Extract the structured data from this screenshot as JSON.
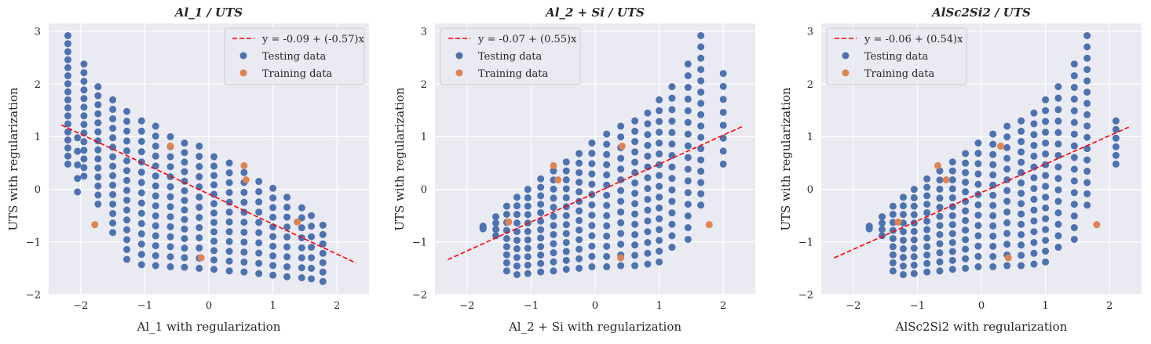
{
  "colors": {
    "background": "#eaeaf2",
    "grid": "#ffffff",
    "testing": "#4c72b0",
    "training": "#dd8452",
    "fit_line": "#ff0000",
    "text": "#262626",
    "legend_bg": "#eaeaf2",
    "legend_border": "#cccccc"
  },
  "chart_data": [
    {
      "type": "scatter",
      "title": "Al_1 / UTS",
      "xlabel": "Al_1 with regularization",
      "ylabel": "UTS with regularization",
      "xlim": [
        -2.5,
        2.5
      ],
      "ylim": [
        -2.0,
        3.15
      ],
      "xticks": [
        -2,
        -1,
        0,
        1,
        2
      ],
      "yticks": [
        -2,
        -1,
        0,
        1,
        2,
        3
      ],
      "xtick_labels": [
        "−2",
        "−1",
        "0",
        "1",
        "2"
      ],
      "ytick_labels": [
        "−2",
        "−1",
        "0",
        "1",
        "2",
        "3"
      ],
      "grid": true,
      "legend_position": "top-right",
      "legend": {
        "line_label": "y = -0.09 + (-0.57)x",
        "testing_label": "Testing data",
        "training_label": "Training data"
      },
      "fit": {
        "intercept": -0.09,
        "slope": -0.57,
        "x_range": [
          -2.3,
          2.3
        ]
      },
      "testing": {
        "columns": [
          {
            "x": -2.2,
            "y_top": 2.92,
            "y_bottom": 0.48,
            "n": 17
          },
          {
            "x": -2.05,
            "y_top": 0.98,
            "y_bottom": -0.05,
            "n": 5
          },
          {
            "x": -1.95,
            "y_top": 2.38,
            "y_bottom": 0.25,
            "n": 14
          },
          {
            "x": -1.73,
            "y_top": 1.95,
            "y_bottom": -0.28,
            "n": 14
          },
          {
            "x": -1.5,
            "y_top": 1.7,
            "y_bottom": -0.82,
            "n": 15
          },
          {
            "x": -1.28,
            "y_top": 1.48,
            "y_bottom": -1.33,
            "n": 16
          },
          {
            "x": -1.05,
            "y_top": 1.3,
            "y_bottom": -1.43,
            "n": 15
          },
          {
            "x": -0.83,
            "y_top": 1.2,
            "y_bottom": -1.45,
            "n": 15
          },
          {
            "x": -0.6,
            "y_top": 1.0,
            "y_bottom": -1.47,
            "n": 14
          },
          {
            "x": -0.38,
            "y_top": 0.88,
            "y_bottom": -1.48,
            "n": 14
          },
          {
            "x": -0.15,
            "y_top": 0.82,
            "y_bottom": -1.5,
            "n": 13
          },
          {
            "x": 0.08,
            "y_top": 0.62,
            "y_bottom": -1.52,
            "n": 13
          },
          {
            "x": 0.32,
            "y_top": 0.5,
            "y_bottom": -1.55,
            "n": 12
          },
          {
            "x": 0.55,
            "y_top": 0.32,
            "y_bottom": -1.57,
            "n": 11
          },
          {
            "x": 0.78,
            "y_top": 0.15,
            "y_bottom": -1.6,
            "n": 10
          },
          {
            "x": 1.0,
            "y_top": 0.02,
            "y_bottom": -1.63,
            "n": 10
          },
          {
            "x": 1.22,
            "y_top": -0.15,
            "y_bottom": -1.66,
            "n": 9
          },
          {
            "x": 1.45,
            "y_top": -0.35,
            "y_bottom": -1.68,
            "n": 8
          },
          {
            "x": 1.6,
            "y_top": -0.5,
            "y_bottom": -1.7,
            "n": 7
          },
          {
            "x": 1.78,
            "y_top": -0.68,
            "y_bottom": -1.75,
            "n": 7
          }
        ]
      },
      "training": {
        "x": [
          -1.78,
          -0.6,
          -0.12,
          0.55,
          0.58,
          1.38
        ],
        "y": [
          -0.67,
          0.82,
          -1.3,
          0.45,
          0.18,
          -0.62
        ]
      }
    },
    {
      "type": "scatter",
      "title": "Al_2 + Si / UTS",
      "xlabel": "Al_2 + Si with regularization",
      "ylabel": "UTS with regularization",
      "xlim": [
        -2.5,
        2.5
      ],
      "ylim": [
        -2.0,
        3.15
      ],
      "xticks": [
        -2,
        -1,
        0,
        1,
        2
      ],
      "yticks": [
        -2,
        -1,
        0,
        1,
        2,
        3
      ],
      "xtick_labels": [
        "−2",
        "−1",
        "0",
        "1",
        "2"
      ],
      "ytick_labels": [
        "−2",
        "−1",
        "0",
        "1",
        "2",
        "3"
      ],
      "grid": true,
      "legend_position": "top-left",
      "legend": {
        "line_label": "y = -0.07 + (0.55)x",
        "testing_label": "Testing data",
        "training_label": "Training data"
      },
      "fit": {
        "intercept": -0.07,
        "slope": 0.55,
        "x_range": [
          -2.3,
          2.3
        ]
      },
      "testing": {
        "columns": [
          {
            "x": -1.75,
            "y_top": -0.7,
            "y_bottom": -0.75,
            "n": 3
          },
          {
            "x": -1.55,
            "y_top": -0.52,
            "y_bottom": -0.88,
            "n": 4
          },
          {
            "x": -1.38,
            "y_top": -0.32,
            "y_bottom": -1.55,
            "n": 9
          },
          {
            "x": -1.22,
            "y_top": -0.15,
            "y_bottom": -1.62,
            "n": 10
          },
          {
            "x": -1.05,
            "y_top": 0.0,
            "y_bottom": -1.6,
            "n": 11
          },
          {
            "x": -0.85,
            "y_top": 0.2,
            "y_bottom": -1.57,
            "n": 12
          },
          {
            "x": -0.65,
            "y_top": 0.35,
            "y_bottom": -1.55,
            "n": 12
          },
          {
            "x": -0.45,
            "y_top": 0.52,
            "y_bottom": -1.52,
            "n": 13
          },
          {
            "x": -0.25,
            "y_top": 0.68,
            "y_bottom": -1.5,
            "n": 13
          },
          {
            "x": -0.05,
            "y_top": 0.88,
            "y_bottom": -1.47,
            "n": 13
          },
          {
            "x": 0.18,
            "y_top": 1.05,
            "y_bottom": -1.47,
            "n": 14
          },
          {
            "x": 0.4,
            "y_top": 1.2,
            "y_bottom": -1.45,
            "n": 14
          },
          {
            "x": 0.62,
            "y_top": 1.3,
            "y_bottom": -1.45,
            "n": 15
          },
          {
            "x": 0.82,
            "y_top": 1.45,
            "y_bottom": -1.42,
            "n": 15
          },
          {
            "x": 1.0,
            "y_top": 1.7,
            "y_bottom": -1.38,
            "n": 16
          },
          {
            "x": 1.2,
            "y_top": 1.95,
            "y_bottom": -1.1,
            "n": 15
          },
          {
            "x": 1.45,
            "y_top": 2.38,
            "y_bottom": -0.95,
            "n": 16
          },
          {
            "x": 1.65,
            "y_top": 2.92,
            "y_bottom": -0.3,
            "n": 16
          },
          {
            "x": 2.0,
            "y_top": 2.2,
            "y_bottom": 0.48,
            "n": 8
          }
        ]
      },
      "training": {
        "x": [
          -1.35,
          -0.65,
          -0.58,
          0.42,
          0.4,
          1.78
        ],
        "y": [
          -0.62,
          0.45,
          0.18,
          0.82,
          -1.3,
          -0.67
        ]
      }
    },
    {
      "type": "scatter",
      "title": "AlSc2Si2 / UTS",
      "xlabel": "AlSc2Si2 with regularization",
      "ylabel": "UTS with regularization",
      "xlim": [
        -2.5,
        2.5
      ],
      "ylim": [
        -2.0,
        3.15
      ],
      "xticks": [
        -2,
        -1,
        0,
        1,
        2
      ],
      "yticks": [
        -2,
        -1,
        0,
        1,
        2,
        3
      ],
      "xtick_labels": [
        "−2",
        "−1",
        "0",
        "1",
        "2"
      ],
      "ytick_labels": [
        "−2",
        "−1",
        "0",
        "1",
        "2",
        "3"
      ],
      "grid": true,
      "legend_position": "top-left",
      "legend": {
        "line_label": "y = -0.06 + (0.54)x",
        "testing_label": "Testing data",
        "training_label": "Training data"
      },
      "fit": {
        "intercept": -0.06,
        "slope": 0.54,
        "x_range": [
          -2.3,
          2.3
        ]
      },
      "testing": {
        "columns": [
          {
            "x": -1.75,
            "y_top": -0.7,
            "y_bottom": -0.75,
            "n": 3
          },
          {
            "x": -1.55,
            "y_top": -0.52,
            "y_bottom": -0.88,
            "n": 4
          },
          {
            "x": -1.38,
            "y_top": -0.32,
            "y_bottom": -1.55,
            "n": 9
          },
          {
            "x": -1.22,
            "y_top": -0.15,
            "y_bottom": -1.62,
            "n": 10
          },
          {
            "x": -1.05,
            "y_top": 0.0,
            "y_bottom": -1.6,
            "n": 11
          },
          {
            "x": -0.85,
            "y_top": 0.2,
            "y_bottom": -1.57,
            "n": 12
          },
          {
            "x": -0.65,
            "y_top": 0.35,
            "y_bottom": -1.55,
            "n": 12
          },
          {
            "x": -0.45,
            "y_top": 0.52,
            "y_bottom": -1.52,
            "n": 13
          },
          {
            "x": -0.25,
            "y_top": 0.68,
            "y_bottom": -1.5,
            "n": 13
          },
          {
            "x": -0.05,
            "y_top": 0.88,
            "y_bottom": -1.47,
            "n": 13
          },
          {
            "x": 0.18,
            "y_top": 1.05,
            "y_bottom": -1.47,
            "n": 14
          },
          {
            "x": 0.4,
            "y_top": 1.2,
            "y_bottom": -1.45,
            "n": 14
          },
          {
            "x": 0.62,
            "y_top": 1.3,
            "y_bottom": -1.45,
            "n": 15
          },
          {
            "x": 0.82,
            "y_top": 1.45,
            "y_bottom": -1.42,
            "n": 15
          },
          {
            "x": 1.0,
            "y_top": 1.7,
            "y_bottom": -1.38,
            "n": 16
          },
          {
            "x": 1.2,
            "y_top": 1.95,
            "y_bottom": -1.1,
            "n": 15
          },
          {
            "x": 1.45,
            "y_top": 2.38,
            "y_bottom": -0.95,
            "n": 16
          },
          {
            "x": 1.65,
            "y_top": 2.92,
            "y_bottom": -0.3,
            "n": 16
          },
          {
            "x": 2.1,
            "y_top": 1.3,
            "y_bottom": 0.48,
            "n": 6
          }
        ]
      },
      "training": {
        "x": [
          -1.3,
          -0.68,
          -0.55,
          0.3,
          0.42,
          1.8
        ],
        "y": [
          -0.62,
          0.45,
          0.18,
          0.82,
          -1.3,
          -0.67
        ]
      }
    }
  ]
}
